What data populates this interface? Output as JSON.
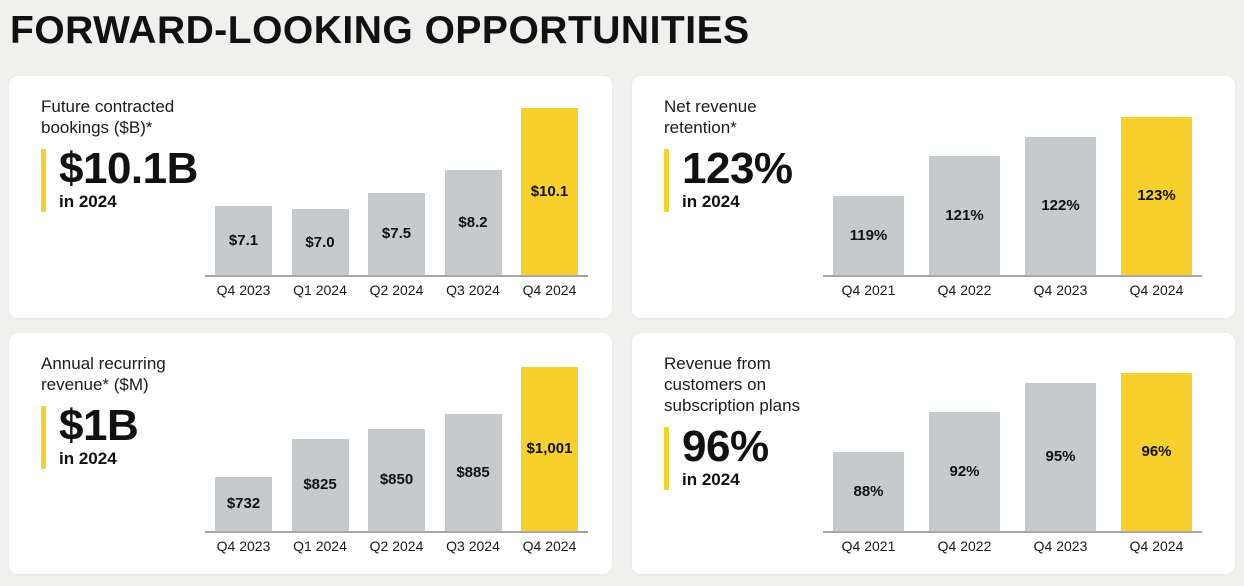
{
  "page": {
    "title": "FORWARD-LOOKING OPPORTUNITIES"
  },
  "colors": {
    "background": "#F0F0EF",
    "card": "#FFFFFF",
    "accent_yellow": "#F7D02B",
    "bar_gray": "#C7CACC",
    "axis_gray": "#A6A6A6",
    "text": "#1A1A1A"
  },
  "cards": [
    {
      "label": "Future contracted bookings ($B)*",
      "stat_value": "$10.1B",
      "stat_caption": "in 2024"
    },
    {
      "label": "Net revenue retention*",
      "stat_value": "123%",
      "stat_caption": "in 2024"
    },
    {
      "label": "Annual recurring revenue* ($M)",
      "stat_value": "$1B",
      "stat_caption": "in 2024"
    },
    {
      "label": "Revenue from customers on subscription plans",
      "stat_value": "96%",
      "stat_caption": "in 2024"
    }
  ],
  "chart_data": [
    {
      "type": "bar",
      "title": "Future contracted bookings ($B)*",
      "categories": [
        "Q4 2023",
        "Q1 2024",
        "Q2 2024",
        "Q3 2024",
        "Q4 2024"
      ],
      "values": [
        7.1,
        7.0,
        7.5,
        8.2,
        10.1
      ],
      "labels": [
        "$7.1",
        "$7.0",
        "$7.5",
        "$8.2",
        "$10.1"
      ],
      "ylim": [
        5.0,
        10.1
      ],
      "highlight_index": 4,
      "grid": false,
      "legend": "none"
    },
    {
      "type": "bar",
      "title": "Net revenue retention*",
      "categories": [
        "Q4 2021",
        "Q4 2022",
        "Q4 2023",
        "Q4 2024"
      ],
      "values": [
        119,
        121,
        122,
        123
      ],
      "labels": [
        "119%",
        "121%",
        "122%",
        "123%"
      ],
      "ylim": [
        115,
        123
      ],
      "highlight_index": 3,
      "grid": false,
      "legend": "none"
    },
    {
      "type": "bar",
      "title": "Annual recurring revenue* ($M)",
      "categories": [
        "Q4 2023",
        "Q1 2024",
        "Q2 2024",
        "Q3 2024",
        "Q4 2024"
      ],
      "values": [
        732,
        825,
        850,
        885,
        1001
      ],
      "labels": [
        "$732",
        "$825",
        "$850",
        "$885",
        "$1,001"
      ],
      "ylim": [
        600,
        1001
      ],
      "highlight_index": 4,
      "grid": false,
      "legend": "none"
    },
    {
      "type": "bar",
      "title": "Revenue from customers on subscription plans",
      "categories": [
        "Q4 2021",
        "Q4 2022",
        "Q4 2023",
        "Q4 2024"
      ],
      "values": [
        88,
        92,
        95,
        96
      ],
      "labels": [
        "88%",
        "92%",
        "95%",
        "96%"
      ],
      "ylim": [
        80,
        96
      ],
      "highlight_index": 3,
      "grid": false,
      "legend": "none"
    }
  ]
}
